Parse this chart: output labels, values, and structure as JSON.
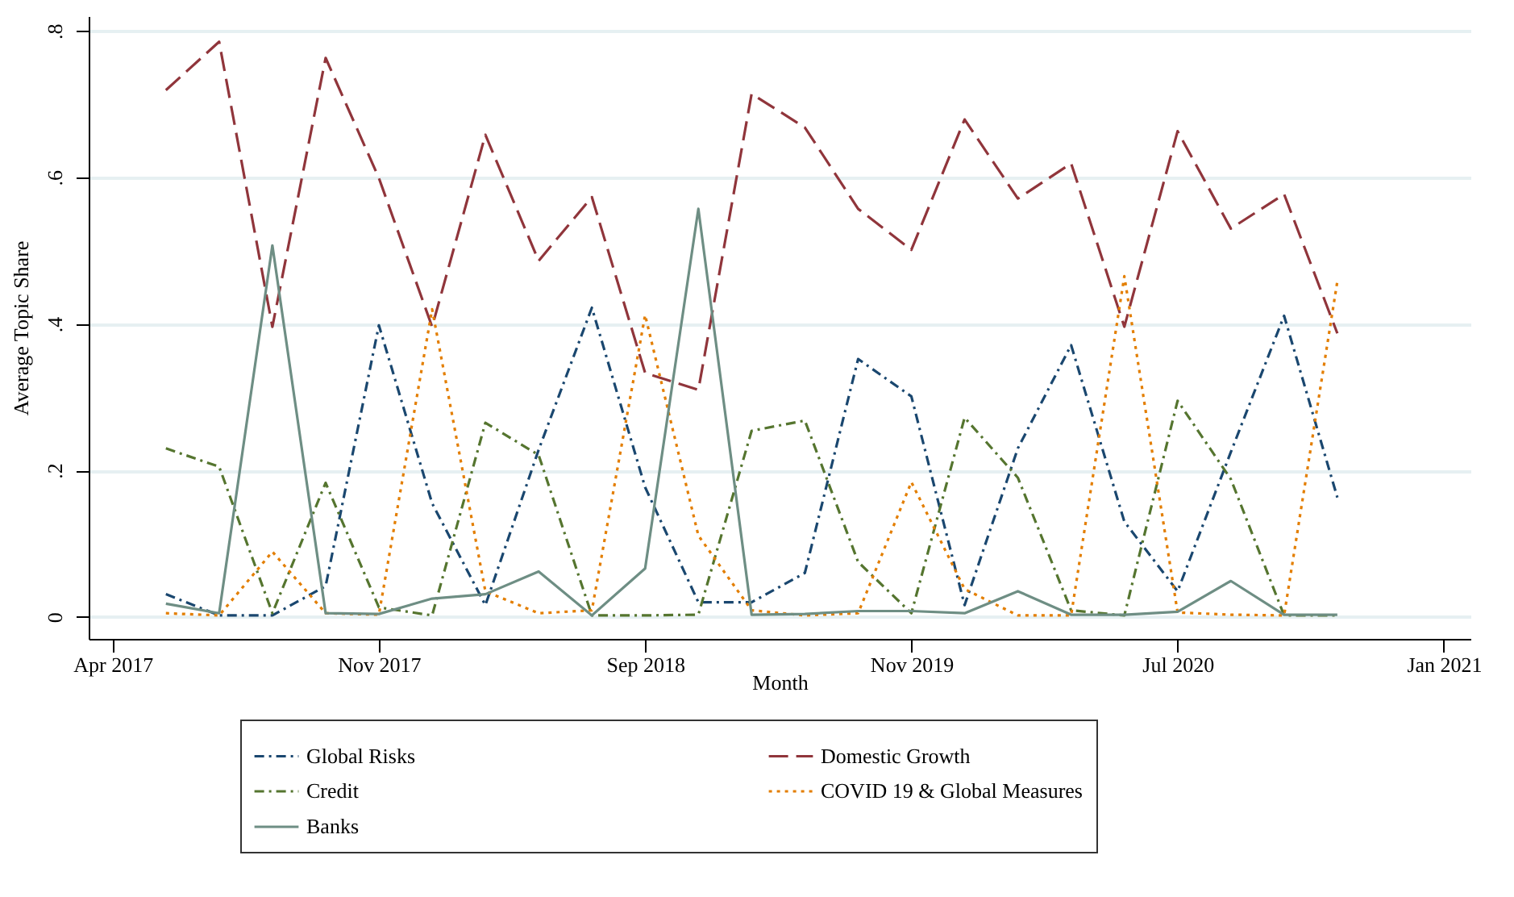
{
  "chart_data": {
    "type": "line",
    "xlabel": "Month",
    "ylabel": "Average Topic Share",
    "categories": [
      "Apr 2017",
      null,
      null,
      null,
      null,
      "Nov 2017",
      null,
      null,
      null,
      null,
      "Sep 2018",
      null,
      null,
      null,
      null,
      "Nov 2019",
      null,
      null,
      null,
      null,
      "Jul 2020",
      null,
      null,
      null,
      null,
      "Jan 2021"
    ],
    "ylim": [
      -0.03,
      0.82
    ],
    "yticks": [
      {
        "value": 0,
        "label": "0"
      },
      {
        "value": 0.2,
        "label": ".2"
      },
      {
        "value": 0.4,
        "label": ".4"
      },
      {
        "value": 0.6,
        "label": ".6"
      },
      {
        "value": 0.8,
        "label": ".8"
      }
    ],
    "grid": "y",
    "legend": "bottom",
    "series": [
      {
        "name": "Global Risks",
        "color": "#1a476f",
        "line_style": "dashdot",
        "values": [
          null,
          0.031,
          0.002,
          0.002,
          0.042,
          0.398,
          0.155,
          0.016,
          0.228,
          0.422,
          0.177,
          0.02,
          0.02,
          0.06,
          0.352,
          0.301,
          0.016,
          0.23,
          0.371,
          0.13,
          0.035,
          0.225,
          0.411,
          0.163,
          null,
          null
        ]
      },
      {
        "name": "Domestic Growth",
        "color": "#90353b",
        "line_style": "dashed",
        "values": [
          null,
          0.719,
          0.785,
          0.396,
          0.763,
          0.599,
          0.396,
          0.658,
          0.486,
          0.573,
          0.333,
          0.31,
          0.714,
          0.668,
          0.557,
          0.501,
          0.679,
          0.571,
          0.619,
          0.396,
          0.663,
          0.53,
          0.577,
          0.387,
          null,
          null
        ]
      },
      {
        "name": "Credit",
        "color": "#55752f",
        "line_style": "dashdot",
        "values": [
          null,
          0.23,
          0.205,
          0.005,
          0.183,
          0.013,
          0.002,
          0.265,
          0.221,
          0.002,
          0.002,
          0.003,
          0.254,
          0.268,
          0.075,
          0.005,
          0.272,
          0.19,
          0.009,
          0.002,
          0.295,
          0.188,
          0.002,
          0.002,
          null,
          null
        ]
      },
      {
        "name": "COVID 19 & Global Measures",
        "color": "#e37e00",
        "line_style": "dotted",
        "values": [
          null,
          0.005,
          0.002,
          0.089,
          0.005,
          0.003,
          0.42,
          0.035,
          0.005,
          0.009,
          0.412,
          0.111,
          0.009,
          0.002,
          0.005,
          0.184,
          0.038,
          0.002,
          0.002,
          0.465,
          0.006,
          0.003,
          0.002,
          0.458,
          null,
          null
        ]
      },
      {
        "name": "Banks",
        "color": "#6e8e84",
        "line_style": "solid",
        "values": [
          null,
          0.018,
          0.005,
          0.507,
          0.005,
          0.004,
          0.025,
          0.031,
          0.062,
          0.002,
          0.066,
          0.557,
          0.003,
          0.004,
          0.008,
          0.008,
          0.005,
          0.035,
          0.003,
          0.003,
          0.007,
          0.049,
          0.003,
          0.003,
          null,
          null
        ]
      }
    ]
  }
}
